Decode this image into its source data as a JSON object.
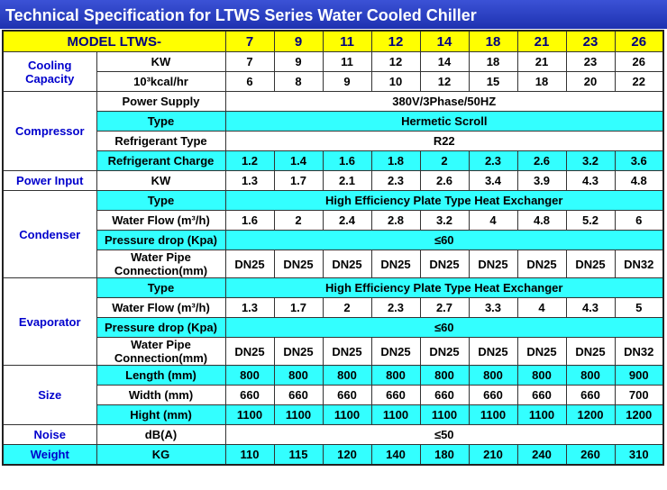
{
  "title": "Technical Specification for LTWS Series Water Cooled Chiller",
  "table": {
    "header": {
      "label": "MODEL LTWS-",
      "models": [
        7,
        9,
        11,
        12,
        14,
        18,
        21,
        23,
        26
      ],
      "fill": "#ffff00"
    },
    "groups": [
      {
        "name": "Cooling Capacity",
        "rows": [
          {
            "label": "KW",
            "values": [
              7,
              9,
              11,
              12,
              14,
              18,
              21,
              23,
              26
            ]
          },
          {
            "label": "10³kcal/hr",
            "values": [
              6,
              8,
              9,
              10,
              12,
              15,
              18,
              20,
              22
            ]
          }
        ]
      },
      {
        "name": "Compressor",
        "rows": [
          {
            "label": "Power Supply",
            "value": "380V/3Phase/50HZ"
          },
          {
            "label": "Type",
            "value": "Hermetic Scroll",
            "fill": "#33ffff"
          },
          {
            "label": "Refrigerant Type",
            "value": "R22"
          },
          {
            "label": "Refrigerant Charge",
            "values": [
              1.2,
              1.4,
              1.6,
              1.8,
              2,
              2.3,
              2.6,
              3.2,
              3.6
            ],
            "fill": "#33ffff"
          }
        ]
      },
      {
        "name": "Power Input",
        "rows": [
          {
            "label": "KW",
            "values": [
              1.3,
              1.7,
              2.1,
              2.3,
              2.6,
              3.4,
              3.9,
              4.3,
              4.8
            ]
          }
        ]
      },
      {
        "name": "Condenser",
        "rows": [
          {
            "label": "Type",
            "value": "High Efficiency Plate Type Heat Exchanger",
            "fill": "#33ffff"
          },
          {
            "label": "Water Flow (m³/h)",
            "values": [
              1.6,
              2,
              2.4,
              2.8,
              3.2,
              4,
              4.8,
              5.2,
              6
            ]
          },
          {
            "label": "Pressure drop (Kpa)",
            "value": "≤60",
            "fill": "#33ffff"
          },
          {
            "label": "Water Pipe Connection(mm)",
            "values": [
              "DN25",
              "DN25",
              "DN25",
              "DN25",
              "DN25",
              "DN25",
              "DN25",
              "DN25",
              "DN32"
            ]
          }
        ]
      },
      {
        "name": "Evaporator",
        "rows": [
          {
            "label": "Type",
            "value": "High Efficiency Plate Type Heat Exchanger",
            "fill": "#33ffff"
          },
          {
            "label": "Water Flow (m³/h)",
            "values": [
              1.3,
              1.7,
              2,
              2.3,
              2.7,
              3.3,
              4,
              4.3,
              5
            ]
          },
          {
            "label": "Pressure drop (Kpa)",
            "value": "≤60",
            "fill": "#33ffff"
          },
          {
            "label": "Water Pipe Connection(mm)",
            "values": [
              "DN25",
              "DN25",
              "DN25",
              "DN25",
              "DN25",
              "DN25",
              "DN25",
              "DN25",
              "DN32"
            ]
          }
        ]
      },
      {
        "name": "Size",
        "rows": [
          {
            "label": "Length (mm)",
            "values": [
              800,
              800,
              800,
              800,
              800,
              800,
              800,
              800,
              900
            ],
            "fill": "#33ffff"
          },
          {
            "label": "Width (mm)",
            "values": [
              660,
              660,
              660,
              660,
              660,
              660,
              660,
              660,
              700
            ]
          },
          {
            "label": "Hight (mm)",
            "values": [
              1100,
              1100,
              1100,
              1100,
              1100,
              1100,
              1100,
              1200,
              1200
            ],
            "fill": "#33ffff"
          }
        ]
      },
      {
        "name": "Noise",
        "rows": [
          {
            "label": "dB(A)",
            "value": "≤50"
          }
        ]
      },
      {
        "name": "Weight",
        "fill": "#33ffff",
        "rows": [
          {
            "label": "KG",
            "values": [
              110,
              115,
              120,
              140,
              180,
              210,
              240,
              260,
              310
            ],
            "fill": "#33ffff"
          }
        ]
      }
    ]
  }
}
